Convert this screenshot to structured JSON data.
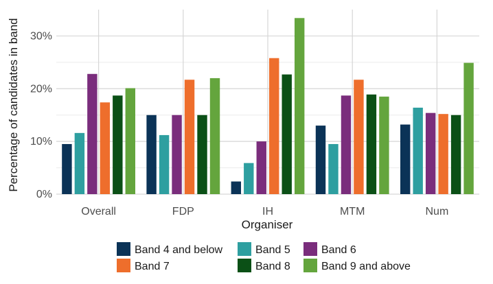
{
  "chart_data": {
    "type": "bar",
    "title": "",
    "xlabel": "Organiser",
    "ylabel": "Percentage of candidates in band",
    "categories": [
      "Overall",
      "FDP",
      "IH",
      "MTM",
      "Num"
    ],
    "ylim": [
      0,
      35
    ],
    "yticks": [
      0,
      10,
      20,
      30
    ],
    "ytick_labels": [
      "0%",
      "10%",
      "20%",
      "30%"
    ],
    "grid": true,
    "legend_position": "bottom",
    "series": [
      {
        "name": "Band 4 and below",
        "color": "#0b3357",
        "values": [
          9.5,
          15.0,
          2.4,
          13.0,
          13.2
        ]
      },
      {
        "name": "Band 5",
        "color": "#2e9fa0",
        "values": [
          11.6,
          11.2,
          5.9,
          9.5,
          16.4
        ]
      },
      {
        "name": "Band 6",
        "color": "#7a2d7c",
        "values": [
          22.8,
          15.0,
          10.0,
          18.7,
          15.4
        ]
      },
      {
        "name": "Band 7",
        "color": "#ee6e2c",
        "values": [
          17.4,
          21.7,
          25.8,
          21.7,
          15.2
        ]
      },
      {
        "name": "Band 8",
        "color": "#0b5016",
        "values": [
          18.7,
          15.0,
          22.7,
          18.9,
          15.0
        ]
      },
      {
        "name": "Band 9 and above",
        "color": "#64a53d",
        "values": [
          20.1,
          22.0,
          33.4,
          18.5,
          24.9
        ]
      }
    ]
  }
}
